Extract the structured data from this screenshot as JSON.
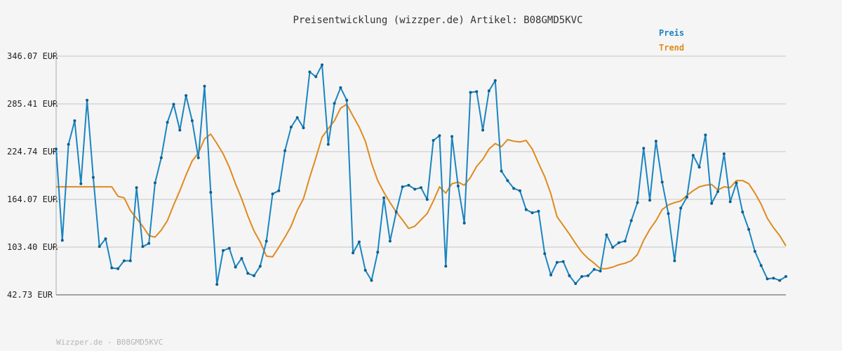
{
  "chart_data": {
    "type": "line",
    "title": "Preisentwicklung (wizzper.de) Artikel: B08GMD5KVC",
    "footer": "Wizzper.de - B08GMD5KVC",
    "ylim": [
      42.73,
      346.07
    ],
    "yticks": [
      "346.07 EUR",
      "285.41 EUR",
      "224.74 EUR",
      "164.07 EUR",
      "103.40 EUR",
      "42.73 EUR"
    ],
    "ytick_values": [
      346.07,
      285.41,
      224.74,
      164.07,
      103.4,
      42.73
    ],
    "grid": true,
    "legend_position": "top-right",
    "colors": {
      "price": "#1a85c1",
      "trend": "#e08a1e",
      "grid": "#dddddd",
      "axis": "#888888"
    },
    "series": [
      {
        "name": "Preis",
        "values": [
          228,
          112,
          234,
          264,
          184,
          290,
          192,
          104,
          114,
          77,
          76,
          86,
          86,
          179,
          104,
          108,
          185,
          217,
          262,
          285,
          252,
          296,
          264,
          217,
          308,
          173,
          56,
          99,
          102,
          78,
          89,
          70,
          67,
          79,
          111,
          171,
          175,
          226,
          256,
          268,
          255,
          326,
          320,
          335,
          234,
          286,
          306,
          290,
          96,
          110,
          74,
          61,
          97,
          166,
          111,
          148,
          180,
          182,
          177,
          179,
          164,
          239,
          245,
          79,
          244,
          181,
          134,
          300,
          301,
          252,
          302,
          315,
          200,
          188,
          178,
          175,
          151,
          147,
          149,
          95,
          68,
          84,
          85,
          67,
          57,
          66,
          67,
          75,
          73,
          119,
          103,
          109,
          111,
          137,
          160,
          229,
          163,
          238,
          186,
          146,
          86,
          153,
          167,
          220,
          205,
          246,
          159,
          174,
          222,
          161,
          185,
          148,
          126,
          98,
          80,
          63,
          64,
          61,
          66
        ]
      },
      {
        "name": "Trend",
        "values": [
          180,
          180,
          180,
          180,
          180,
          180,
          180,
          180,
          180,
          180,
          168,
          166,
          150,
          140,
          130,
          118,
          116,
          125,
          137,
          157,
          175,
          195,
          213,
          223,
          241,
          247,
          235,
          222,
          205,
          184,
          165,
          143,
          124,
          110,
          92,
          91,
          103,
          116,
          130,
          150,
          165,
          192,
          217,
          243,
          254,
          264,
          280,
          285,
          270,
          256,
          238,
          210,
          188,
          173,
          160,
          148,
          138,
          127,
          130,
          138,
          146,
          162,
          180,
          172,
          184,
          186,
          182,
          192,
          206,
          215,
          228,
          235,
          231,
          240,
          238,
          237,
          239,
          228,
          210,
          193,
          171,
          142,
          131,
          120,
          108,
          97,
          89,
          83,
          76,
          76,
          78,
          81,
          83,
          86,
          94,
          112,
          126,
          137,
          151,
          157,
          160,
          162,
          169,
          175,
          180,
          182,
          183,
          176,
          180,
          179,
          188,
          188,
          184,
          172,
          158,
          140,
          128,
          118,
          105
        ]
      }
    ]
  }
}
